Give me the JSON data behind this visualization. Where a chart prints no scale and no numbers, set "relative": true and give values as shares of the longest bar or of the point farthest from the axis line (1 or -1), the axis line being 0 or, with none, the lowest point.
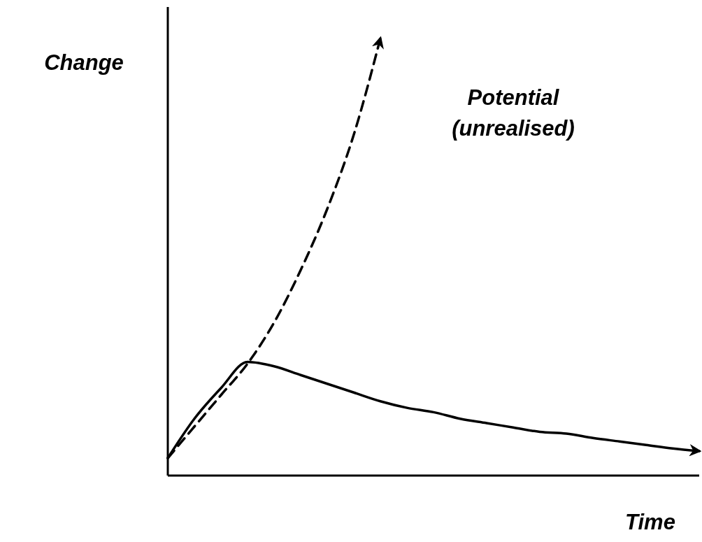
{
  "chart_data": {
    "type": "line",
    "relative": true,
    "xlabel": "Time",
    "ylabel": "Change",
    "grid": false,
    "marker": "none",
    "categories": [
      null,
      null,
      null,
      null,
      null,
      null,
      null,
      null,
      null,
      null,
      null,
      null,
      null,
      null,
      null,
      null,
      null,
      null,
      null,
      null,
      null
    ],
    "series": [
      {
        "color": "#000000",
        "line_style": "solid",
        "values": [
          0.04,
          0.13,
          0.2,
          0.26,
          0.25,
          0.23,
          0.21,
          0.19,
          0.17,
          0.155,
          0.145,
          0.13,
          0.12,
          0.11,
          0.1,
          0.096,
          0.086,
          0.078,
          0.07,
          0.062,
          0.056
        ]
      },
      {
        "name": "Potential (unrealised)",
        "color": "#000000",
        "line_style": "dashed",
        "values": [
          0.04,
          0.112,
          0.184,
          0.256,
          0.35,
          0.47,
          0.61,
          0.78,
          1,
          null,
          null,
          null,
          null,
          null,
          null,
          null,
          null,
          null,
          null,
          null,
          null
        ]
      }
    ]
  }
}
